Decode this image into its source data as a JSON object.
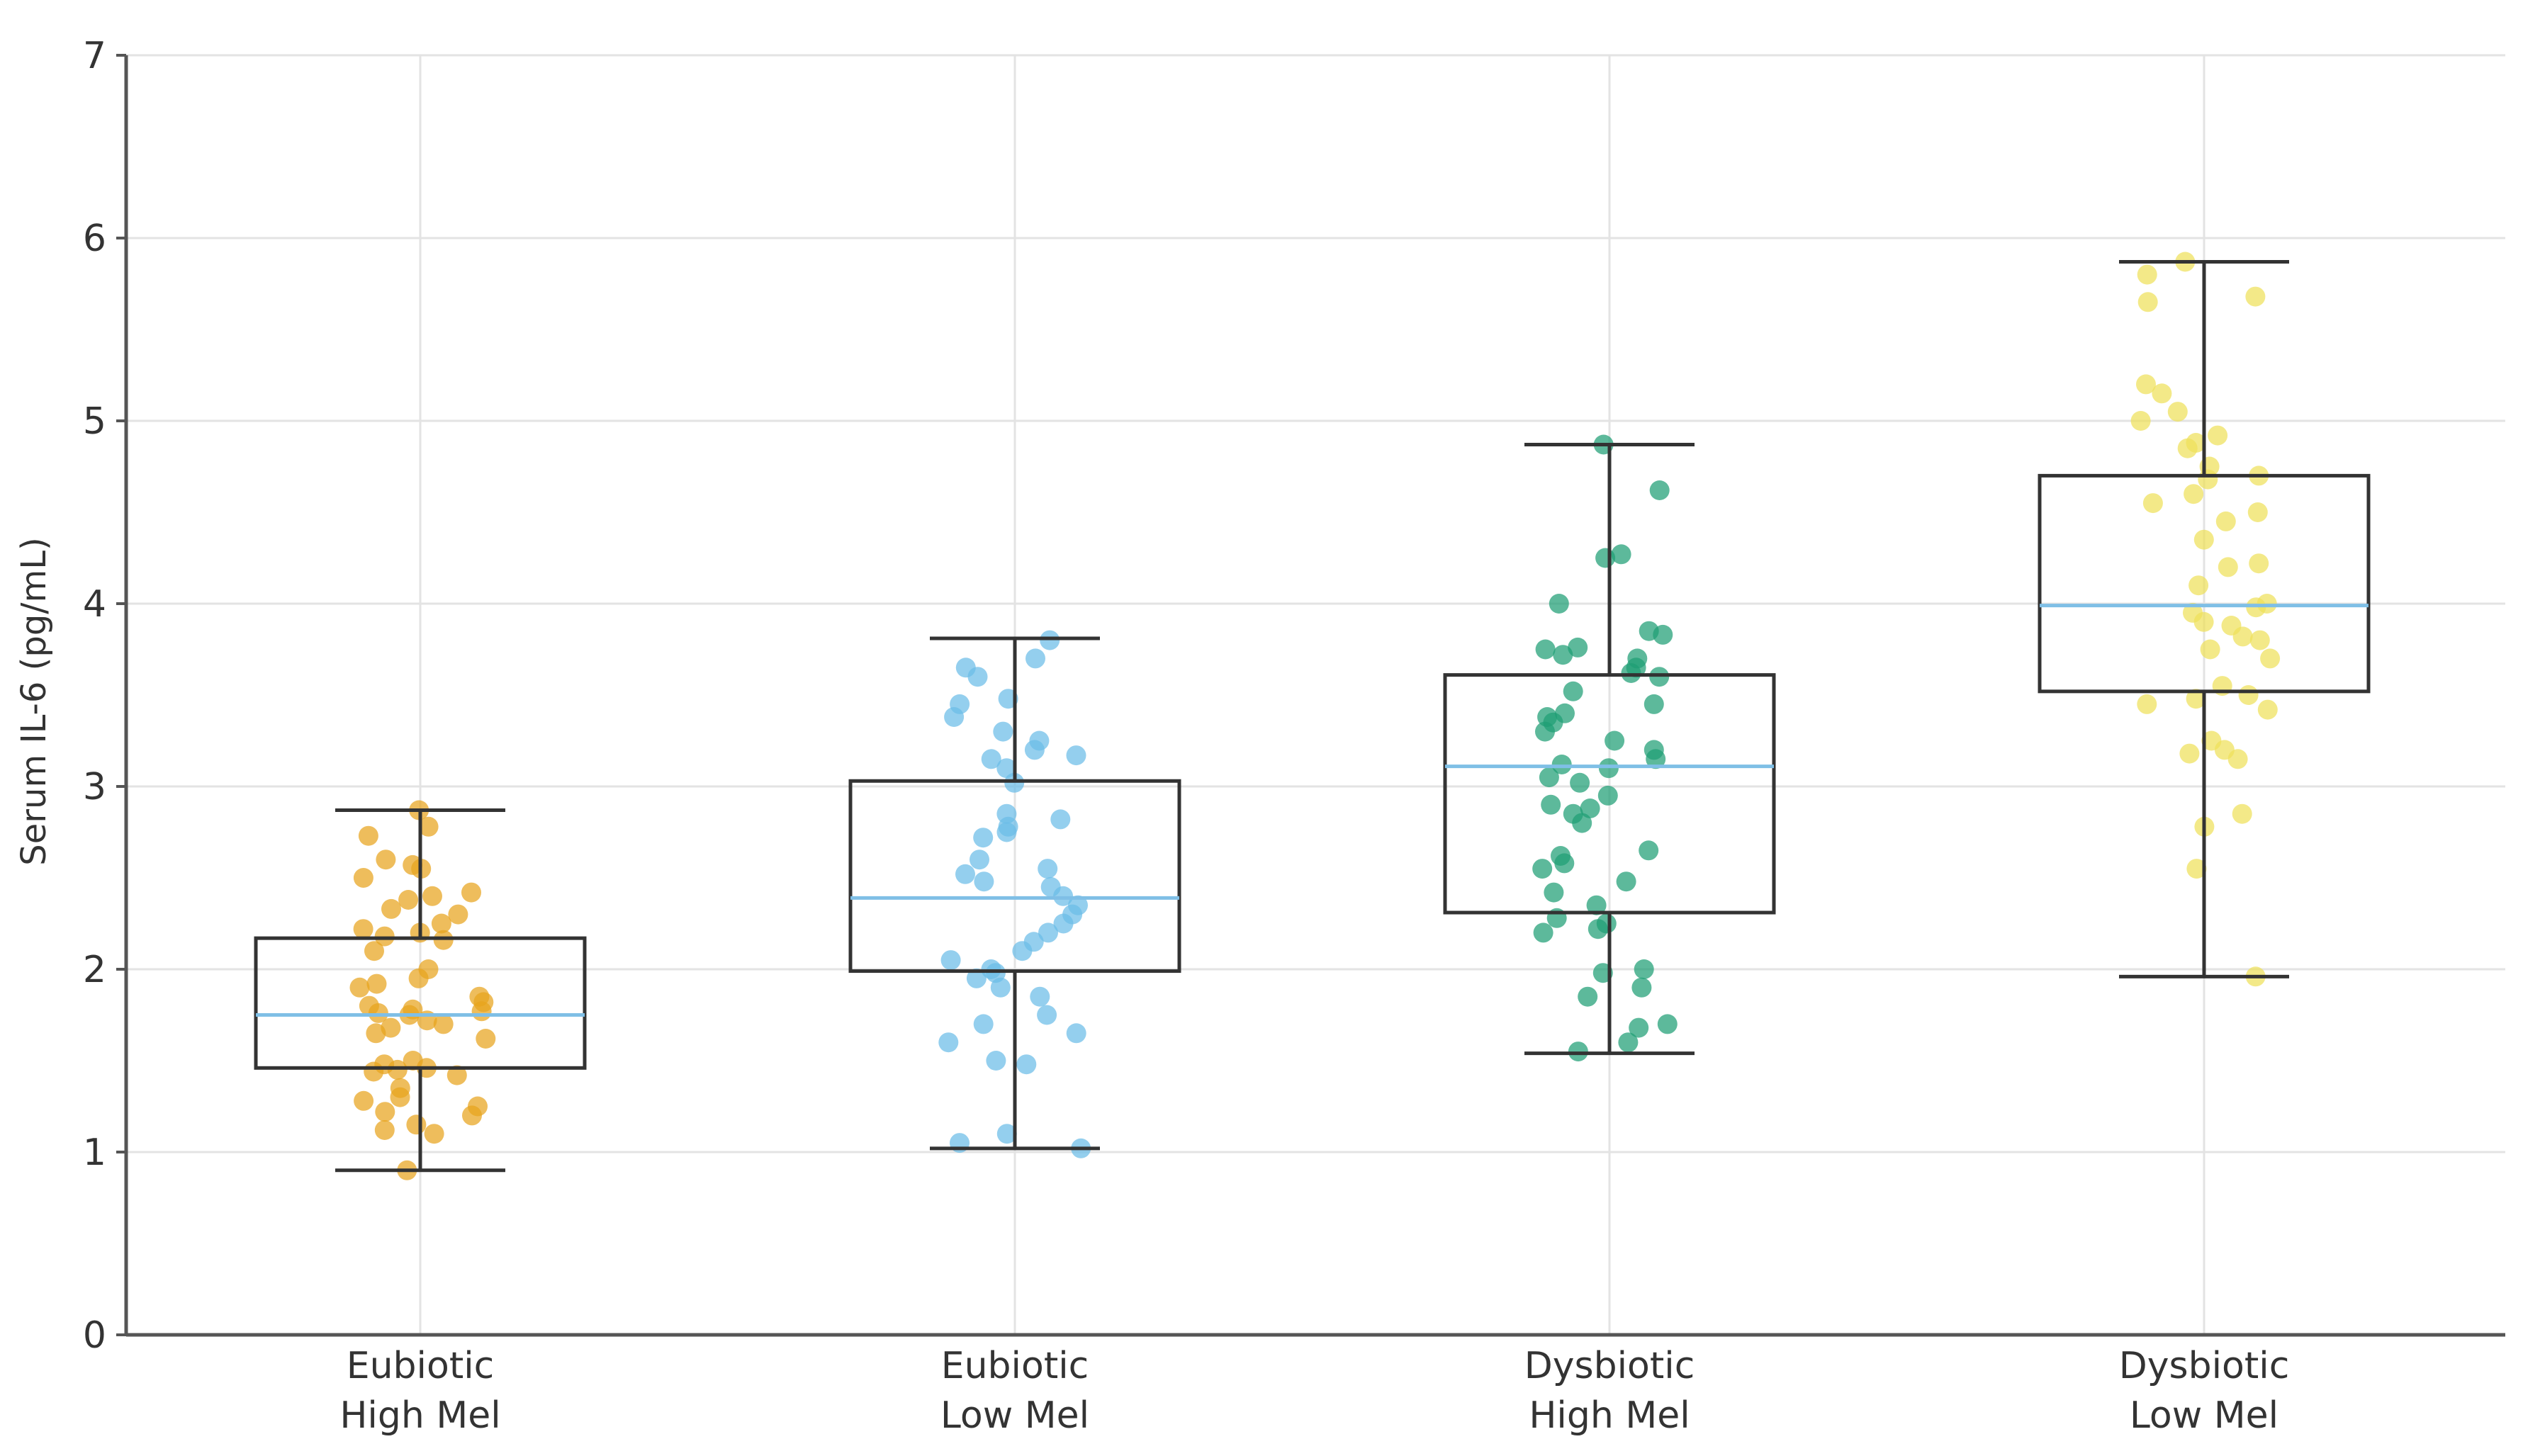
{
  "chart_data": {
    "type": "box",
    "title": "",
    "xlabel": "",
    "ylabel": "Serum IL-6 (pg/mL)",
    "ylim": [
      0,
      7
    ],
    "yticks": [
      0,
      1,
      2,
      3,
      4,
      5,
      6,
      7
    ],
    "grid": true,
    "categories": [
      {
        "line1": "Eubiotic",
        "line2": "High Mel"
      },
      {
        "line1": "Eubiotic",
        "line2": "Low Mel"
      },
      {
        "line1": "Dysbiotic",
        "line2": "High Mel"
      },
      {
        "line1": "Dysbiotic",
        "line2": "Low Mel"
      }
    ],
    "series": [
      {
        "name": "Eubiotic High Mel",
        "color": "#E8A41D",
        "whisker_low": 0.9,
        "q1": 1.46,
        "median": 1.75,
        "q3": 2.17,
        "whisker_high": 2.87,
        "points": [
          2.87,
          2.78,
          2.73,
          2.6,
          2.57,
          2.55,
          2.5,
          2.42,
          2.4,
          2.38,
          2.33,
          2.3,
          2.25,
          2.22,
          2.2,
          2.18,
          2.16,
          2.1,
          2.0,
          1.95,
          1.92,
          1.9,
          1.85,
          1.82,
          1.8,
          1.78,
          1.77,
          1.76,
          1.75,
          1.72,
          1.7,
          1.68,
          1.65,
          1.62,
          1.5,
          1.48,
          1.46,
          1.45,
          1.44,
          1.42,
          1.35,
          1.3,
          1.28,
          1.25,
          1.22,
          1.2,
          1.15,
          1.12,
          1.1,
          0.9
        ]
      },
      {
        "name": "Eubiotic Low Mel",
        "color": "#6BBCE8",
        "whisker_low": 1.02,
        "q1": 1.99,
        "median": 2.39,
        "q3": 3.03,
        "whisker_high": 3.81,
        "points": [
          3.8,
          3.7,
          3.65,
          3.6,
          3.48,
          3.45,
          3.38,
          3.3,
          3.25,
          3.2,
          3.17,
          3.15,
          3.1,
          3.02,
          2.85,
          2.82,
          2.78,
          2.75,
          2.72,
          2.6,
          2.55,
          2.52,
          2.48,
          2.45,
          2.4,
          2.35,
          2.3,
          2.25,
          2.2,
          2.15,
          2.1,
          2.05,
          2.0,
          1.98,
          1.95,
          1.9,
          1.85,
          1.75,
          1.7,
          1.65,
          1.6,
          1.5,
          1.48,
          1.1,
          1.05,
          1.02
        ]
      },
      {
        "name": "Dysbiotic High Mel",
        "color": "#1E9E74",
        "whisker_low": 1.54,
        "q1": 2.31,
        "median": 3.11,
        "q3": 3.61,
        "whisker_high": 4.87,
        "points": [
          4.87,
          4.62,
          4.27,
          4.25,
          4.0,
          3.85,
          3.83,
          3.76,
          3.75,
          3.72,
          3.7,
          3.65,
          3.62,
          3.6,
          3.52,
          3.45,
          3.4,
          3.38,
          3.35,
          3.3,
          3.25,
          3.2,
          3.15,
          3.12,
          3.1,
          3.05,
          3.02,
          2.95,
          2.9,
          2.88,
          2.85,
          2.8,
          2.65,
          2.62,
          2.58,
          2.55,
          2.48,
          2.42,
          2.35,
          2.28,
          2.25,
          2.22,
          2.2,
          2.0,
          1.98,
          1.9,
          1.85,
          1.7,
          1.68,
          1.6,
          1.55
        ]
      },
      {
        "name": "Dysbiotic Low Mel",
        "color": "#EFE05A",
        "whisker_low": 1.96,
        "q1": 3.52,
        "median": 3.99,
        "q3": 4.7,
        "whisker_high": 5.87,
        "points": [
          5.87,
          5.8,
          5.68,
          5.65,
          5.2,
          5.15,
          5.05,
          5.0,
          4.92,
          4.88,
          4.85,
          4.75,
          4.7,
          4.68,
          4.6,
          4.55,
          4.5,
          4.45,
          4.35,
          4.22,
          4.2,
          4.1,
          4.0,
          3.98,
          3.95,
          3.9,
          3.88,
          3.82,
          3.8,
          3.75,
          3.7,
          3.55,
          3.5,
          3.48,
          3.45,
          3.42,
          3.25,
          3.2,
          3.18,
          3.15,
          2.85,
          2.78,
          2.55,
          1.96
        ]
      }
    ]
  }
}
